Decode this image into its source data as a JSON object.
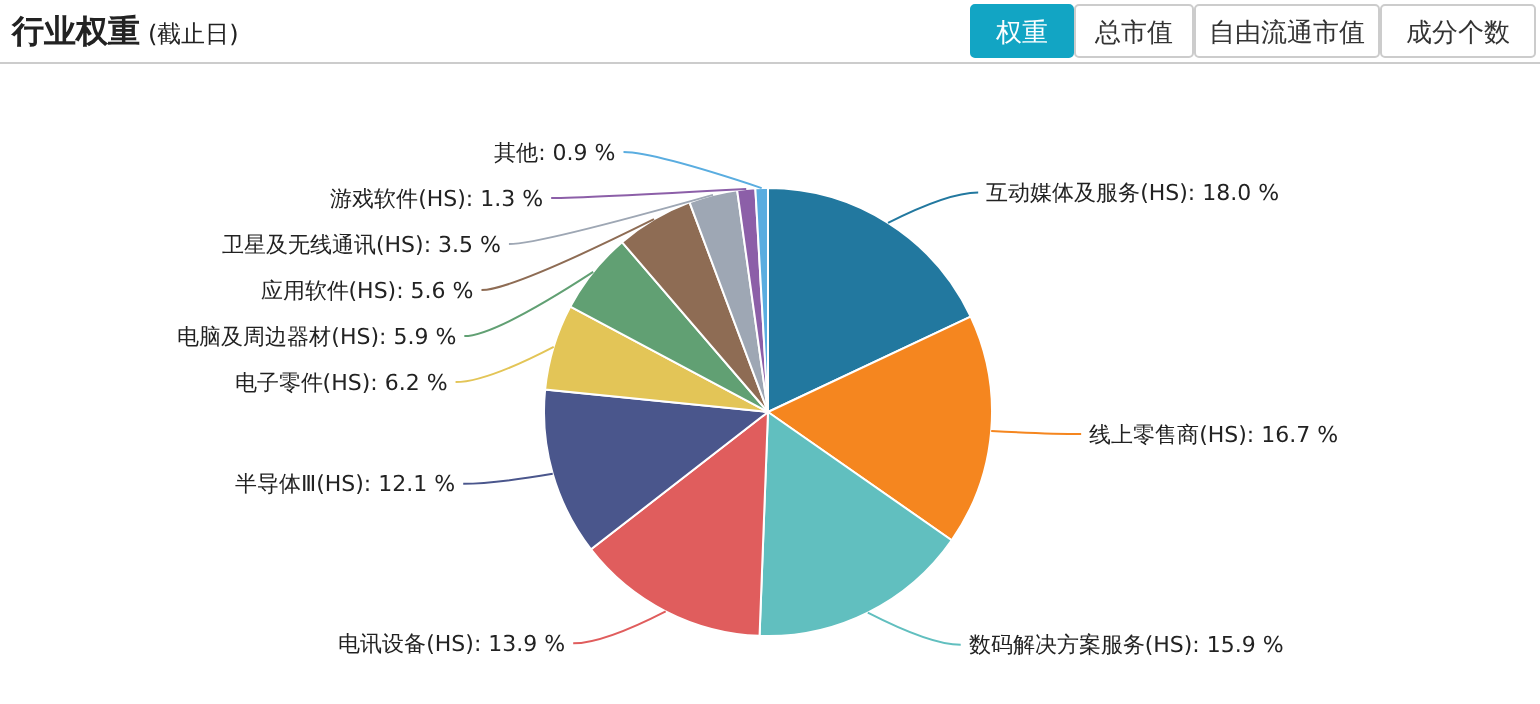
{
  "chart_data": {
    "type": "pie",
    "title": "行业权重",
    "subtitle": "(截止日)",
    "annotations": [
      "权重",
      "总市值",
      "自由流通市值",
      "成分个数"
    ],
    "categories": [
      "互动媒体及服务(HS)",
      "线上零售商(HS)",
      "数码解决方案服务(HS)",
      "电讯设备(HS)",
      "半导体Ⅲ(HS)",
      "电子零件(HS)",
      "电脑及周边器材(HS)",
      "应用软件(HS)",
      "卫星及无线通讯(HS)",
      "游戏软件(HS)",
      "其他"
    ],
    "values": [
      18.0,
      16.7,
      15.9,
      13.9,
      12.1,
      6.2,
      5.9,
      5.6,
      3.5,
      1.3,
      0.9
    ],
    "value_labels": [
      "18.0 %",
      "16.7 %",
      "15.9 %",
      "13.9 %",
      "12.1 %",
      "6.2 %",
      "5.9 %",
      "5.6 %",
      "3.5 %",
      "1.3 %",
      "0.9 %"
    ],
    "colors": [
      "#22789f",
      "#f5861f",
      "#61bfbf",
      "#e05d5d",
      "#4a568c",
      "#e3c557",
      "#61a073",
      "#8e6c54",
      "#9ea7b4",
      "#8c5fa8",
      "#5aade0"
    ]
  }
}
